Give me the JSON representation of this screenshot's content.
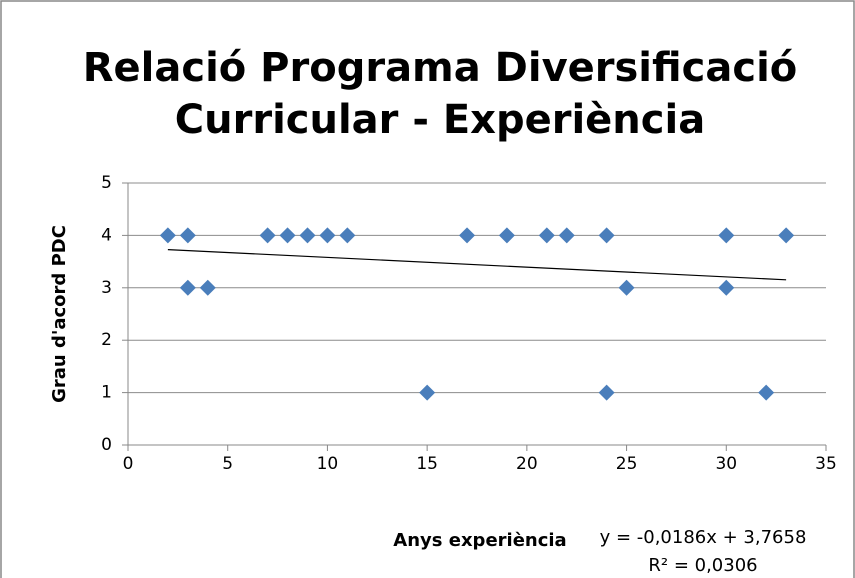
{
  "chart_data": {
    "type": "scatter",
    "title": [
      "Relació Programa Diversificació",
      "Curricular - Experiència"
    ],
    "x_label": "Anys experiència",
    "y_label": "Grau d'acord PDC",
    "annotations": [
      "y = -0,0186x + 3,7658",
      "R² = 0,0306"
    ],
    "x": [
      2,
      3,
      3,
      4,
      7,
      8,
      9,
      10,
      11,
      15,
      17,
      19,
      21,
      22,
      24,
      24,
      25,
      30,
      30,
      32,
      33
    ],
    "values": [
      4,
      4,
      3,
      3,
      4,
      4,
      4,
      4,
      4,
      1,
      4,
      4,
      4,
      4,
      4,
      1,
      3,
      4,
      3,
      1,
      4
    ],
    "color": "#4a7ebb",
    "trendline": {
      "x": [
        2,
        33
      ],
      "values": [
        3.7286,
        3.152
      ],
      "color": "#000000"
    },
    "xlim": [
      0,
      35
    ],
    "xticks": [
      0,
      5,
      10,
      15,
      20,
      25,
      30,
      35
    ],
    "ylim": [
      0,
      5
    ],
    "yticks": [
      0,
      1,
      2,
      3,
      4,
      5
    ],
    "grid": true
  }
}
